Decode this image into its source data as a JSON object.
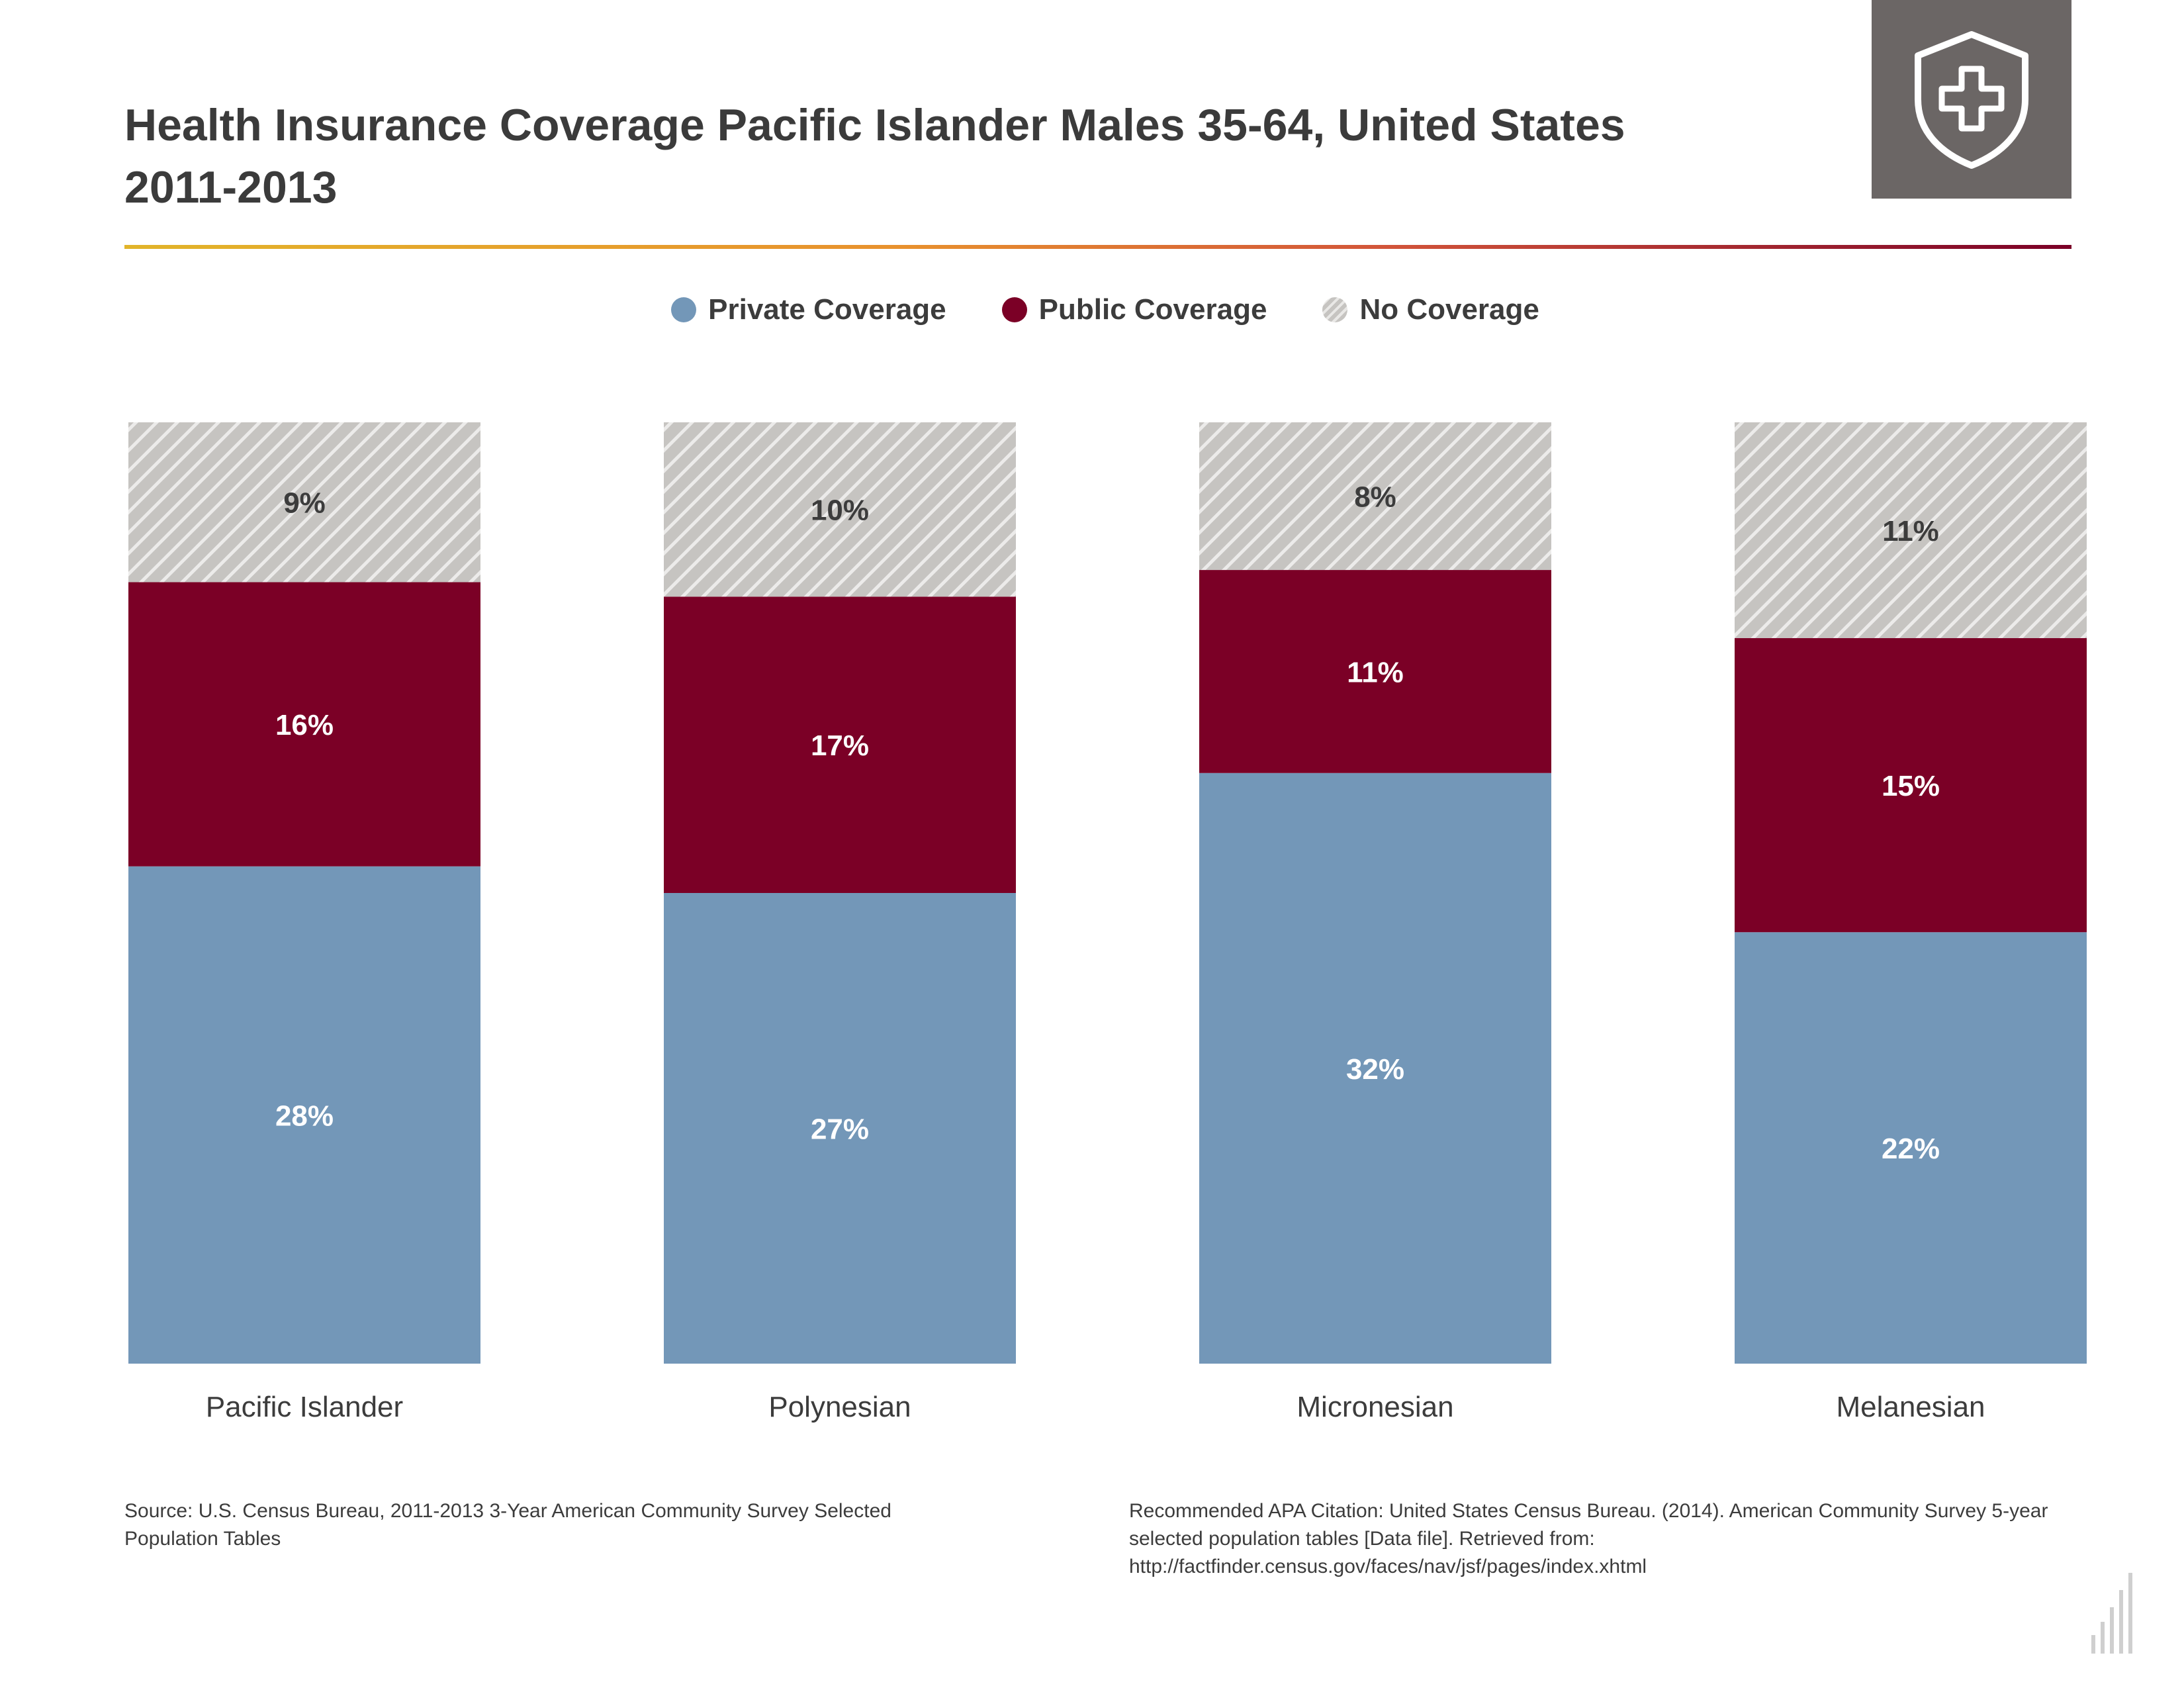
{
  "title": "Health Insurance Coverage Pacific Islander Males 35-64, United States 2011-2013",
  "icon": "shield-plus-icon",
  "legend": {
    "private": "Private Coverage",
    "public": "Public Coverage",
    "none": "No Coverage"
  },
  "colors": {
    "private": "#7397b8",
    "public": "#7b0026",
    "none": "#c6c4c1",
    "accent_start": "#e2b42a",
    "accent_end": "#7a0027"
  },
  "chart_data": {
    "type": "bar",
    "stacked": true,
    "categories": [
      "Pacific Islander",
      "Polynesian",
      "Micronesian",
      "Melanesian"
    ],
    "series": [
      {
        "name": "Private Coverage",
        "values": [
          28,
          27,
          32,
          22
        ],
        "labels": [
          "28%",
          "27%",
          "32%",
          "22%"
        ]
      },
      {
        "name": "Public Coverage",
        "values": [
          16,
          17,
          11,
          15
        ],
        "labels": [
          "16%",
          "17%",
          "11%",
          "15%"
        ]
      },
      {
        "name": "No Coverage",
        "values": [
          9,
          10,
          8,
          11
        ],
        "labels": [
          "9%",
          "10%",
          "8%",
          "11%"
        ]
      }
    ],
    "title": "Health Insurance Coverage Pacific Islander Males 35-64, United States 2011-2013",
    "xlabel": "",
    "ylabel": "",
    "legend_position": "top-center",
    "grid": false
  },
  "source": "Source: U.S. Census Bureau, 2011-2013 3-Year American Community Survey Selected Population Tables",
  "citation": "Recommended APA Citation: United States Census Bureau. (2014). American Community Survey 5-year selected population tables [Data file]. Retrieved from: http://factfinder.census.gov/faces/nav/jsf/pages/index.xhtml",
  "corner_icon": "bar-logo-icon"
}
